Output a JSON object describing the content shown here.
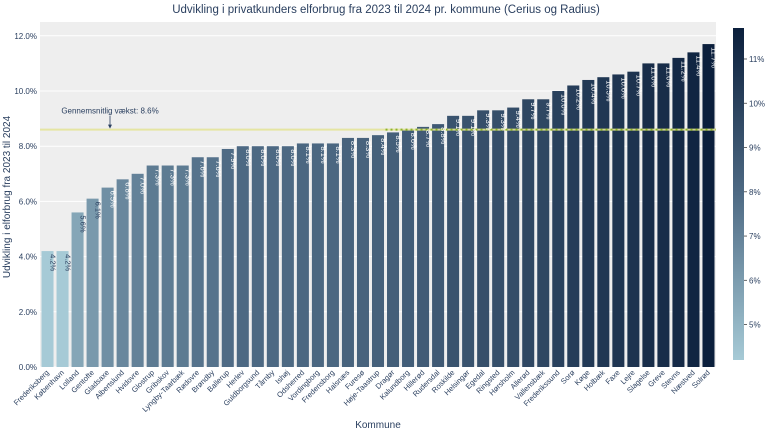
{
  "chart_data": {
    "type": "bar",
    "title": "Udvikling i privatkunders elforbrug fra 2023 til 2024 pr. kommune (Cerius og Radius)",
    "xlabel": "Kommune",
    "ylabel": "Udvikling i elforbrug fra 2023 til 2024",
    "ylim": [
      0,
      12.5
    ],
    "yticks": [
      "0.0%",
      "2.0%",
      "4.0%",
      "6.0%",
      "8.0%",
      "10.0%",
      "12.0%"
    ],
    "ytick_values": [
      0,
      2,
      4,
      6,
      8,
      10,
      12
    ],
    "categories": [
      "Frederiksberg",
      "København",
      "Lolland",
      "Gentofte",
      "Gladsaxe",
      "Albertslund",
      "Hvidovre",
      "Glostrup",
      "Gribskov",
      "Lyngby-Taarbæk",
      "Rødovre",
      "Brøndby",
      "Ballerup",
      "Herlev",
      "Guldborgsund",
      "Tårnby",
      "Ishøj",
      "Odsherred",
      "Vordingborg",
      "Fredensborg",
      "Halsnæs",
      "Furesø",
      "Høje-Taastrup",
      "Dragør",
      "Kalundborg",
      "Hillerød",
      "Rudersdal",
      "Roskilde",
      "Helsingør",
      "Egedal",
      "Ringsted",
      "Hørsholm",
      "Allerød",
      "Vallensbæk",
      "Frederikssund",
      "Sorø",
      "Køge",
      "Holbæk",
      "Faxe",
      "Lejre",
      "Slagelse",
      "Greve",
      "Stevns",
      "Næstved",
      "Solrød"
    ],
    "values": [
      4.2,
      4.2,
      5.6,
      6.1,
      6.5,
      6.8,
      7.0,
      7.3,
      7.3,
      7.3,
      7.6,
      7.6,
      7.9,
      8.0,
      8.0,
      8.0,
      8.0,
      8.1,
      8.1,
      8.1,
      8.3,
      8.3,
      8.4,
      8.5,
      8.6,
      8.7,
      8.8,
      9.1,
      9.1,
      9.3,
      9.3,
      9.4,
      9.7,
      9.7,
      10.0,
      10.2,
      10.4,
      10.5,
      10.6,
      10.7,
      11.0,
      11.0,
      11.2,
      11.4,
      11.7
    ],
    "data_labels": [
      "4.2%",
      "4.2%",
      "5.6%",
      "6.1%",
      "6.5%",
      "6.8%",
      "7.0%",
      "7.3%",
      "7.3%",
      "7.3%",
      "7.6%",
      "7.6%",
      "7.9%",
      "8.0%",
      "8.0%",
      "8.0%",
      "8.0%",
      "8.1%",
      "8.1%",
      "8.1%",
      "8.3%",
      "8.3%",
      "8.4%",
      "8.5%",
      "8.6%",
      "8.7%",
      "8.8%",
      "9.1%",
      "9.1%",
      "9.3%",
      "9.3%",
      "9.4%",
      "9.7%",
      "9.7%",
      "10.0%",
      "10.2%",
      "10.4%",
      "10.5%",
      "10.6%",
      "10.7%",
      "11.0%",
      "11.0%",
      "11.2%",
      "11.4%",
      "11.7%"
    ],
    "average": {
      "value": 8.6,
      "label": "Gennemsnitlig vækst: 8.6%",
      "line_color": "#e5e59a",
      "marker_color": "#8db32a"
    },
    "colorbar": {
      "range": [
        4.2,
        11.7
      ],
      "ticks": [
        "5%",
        "6%",
        "7%",
        "8%",
        "9%",
        "10%",
        "11%"
      ],
      "tick_values": [
        5,
        6,
        7,
        8,
        9,
        10,
        11
      ],
      "color_low": "#a6cad6",
      "color_mid": "#4e6a84",
      "color_high": "#0b1f3c"
    },
    "plot_bg": "#eeeeee",
    "grid": true,
    "legend": "none"
  }
}
